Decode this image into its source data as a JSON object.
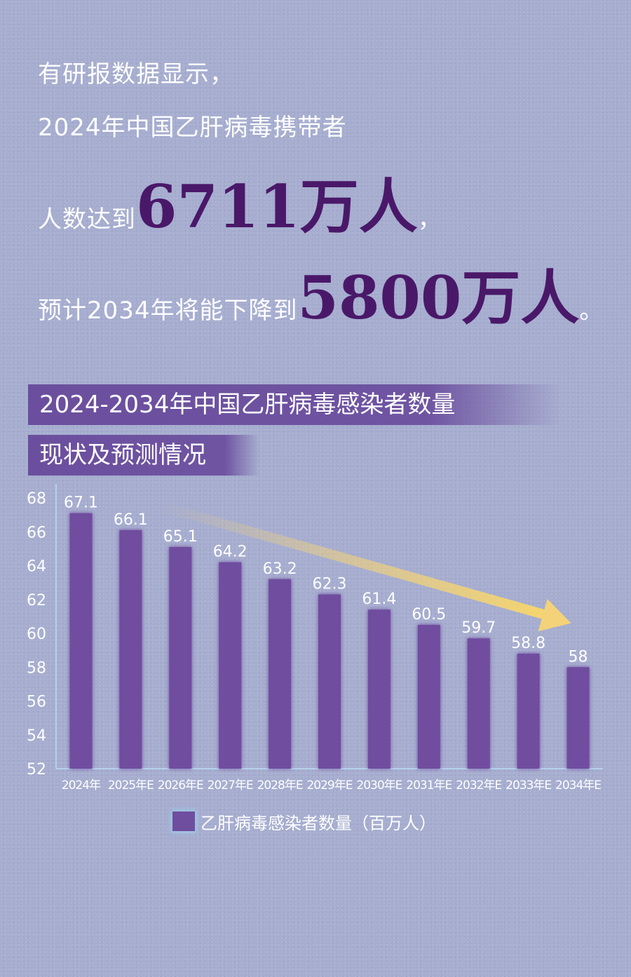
{
  "intro": {
    "line1": "有研报数据显示，",
    "line2": "2024年中国乙肝病毒携带者",
    "line3_prefix": "人数达到",
    "line3_value": "6711万人",
    "line3_suffix": "，",
    "line4_prefix": "预计2034年将能下降到",
    "line4_value": "5800万人",
    "line4_suffix": "。"
  },
  "chart_title": {
    "line1": "2024-2034年中国乙肝病毒感染者数量",
    "line2": "现状及预测情况"
  },
  "colors": {
    "bar": "#6f4e9f",
    "highlight_text": "#4a1869",
    "arrow": "#f3d27a",
    "glow": "#9fe6ff"
  },
  "chart_data": {
    "type": "bar",
    "categories": [
      "2024年",
      "2025年E",
      "2026年E",
      "2027年E",
      "2028年E",
      "2029年E",
      "2030年E",
      "2031年E",
      "2032年E",
      "2033年E",
      "2034年E"
    ],
    "series": [
      {
        "name": "乙肝病毒感染者数量（百万人）",
        "values": [
          67.1,
          66.1,
          65.1,
          64.2,
          63.2,
          62.3,
          61.4,
          60.5,
          59.7,
          58.8,
          58
        ]
      }
    ],
    "value_labels": [
      "67.1",
      "66.1",
      "65.1",
      "64.2",
      "63.2",
      "62.3",
      "61.4",
      "60.5",
      "59.7",
      "58.8",
      "58"
    ],
    "yticks": [
      52,
      54,
      56,
      58,
      60,
      62,
      64,
      66,
      68
    ],
    "ylim": [
      52,
      68
    ],
    "trend_arrow": {
      "from_category": "2024年",
      "to_category": "2034年E"
    },
    "legend_position": "bottom",
    "grid": false
  }
}
